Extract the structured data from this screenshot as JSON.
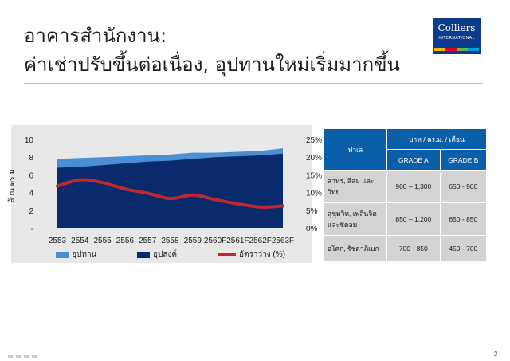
{
  "slide": {
    "title_line1": "อาคารสำนักงาน:",
    "title_line2": "ค่าเช่าปรับขึ้นต่อเนื่อง, อุปทานใหม่เริ่มมากขึ้น",
    "page_number": "2"
  },
  "logo": {
    "name": "Colliers",
    "sub": "INTERNATIONAL",
    "color": "#0b3b8c",
    "stripe_colors": [
      "#f2b800",
      "#e4002b",
      "#6cb33f",
      "#00a3e0"
    ]
  },
  "chart_data": {
    "type": "area",
    "categories": [
      "2553",
      "2554",
      "2555",
      "2556",
      "2557",
      "2558",
      "2559",
      "2560F",
      "2561F",
      "2562F",
      "2563F"
    ],
    "ylabel": "ล้าน ตร.ม.",
    "ylim": [
      0,
      10
    ],
    "y_ticks": [
      "-",
      "2",
      "4",
      "6",
      "8",
      "10"
    ],
    "y2lim": [
      0,
      25
    ],
    "y2_ticks": [
      "0%",
      "5%",
      "10%",
      "15%",
      "20%",
      "25%"
    ],
    "series": [
      {
        "name": "อุปทาน",
        "kind": "area",
        "axis": "left",
        "color": "#4a8fd4",
        "values": [
          7.8,
          7.9,
          8.0,
          8.1,
          8.2,
          8.3,
          8.5,
          8.5,
          8.6,
          8.7,
          9.0
        ]
      },
      {
        "name": "อุปสงค์",
        "kind": "area",
        "axis": "left",
        "color": "#0a2a6e",
        "values": [
          6.8,
          6.9,
          7.1,
          7.3,
          7.5,
          7.6,
          7.8,
          8.0,
          8.1,
          8.2,
          8.4
        ]
      },
      {
        "name": "อัตราว่าง (%)",
        "kind": "line",
        "axis": "right",
        "color": "#c0282d",
        "values": [
          11.8,
          13.6,
          12.8,
          11.0,
          9.8,
          8.3,
          9.3,
          8.0,
          6.8,
          5.9,
          6.2
        ]
      }
    ],
    "legend_position": "bottom",
    "background": "#e8e8e8"
  },
  "rent_table": {
    "header_location": "ทำเล",
    "header_unit": "บาท / ตร.ม. / เดือน",
    "header_grade_a": "GRADE A",
    "header_grade_b": "GRADE B",
    "header_color": "#0a5fa8",
    "body_color": "#d3d3d3",
    "rows": [
      {
        "location": "สาทร, สีลม และ วิทยุ",
        "grade_a": "900 – 1,300",
        "grade_b": "650 - 900"
      },
      {
        "location": "สุขุมวิท, เพลินจิต และชิดลม",
        "grade_a": "850 – 1,200",
        "grade_b": "650 - 850"
      },
      {
        "location": "อโศก, รัชดาภิเษก",
        "grade_a": "700 - 850",
        "grade_b": "450 - 700"
      }
    ]
  }
}
